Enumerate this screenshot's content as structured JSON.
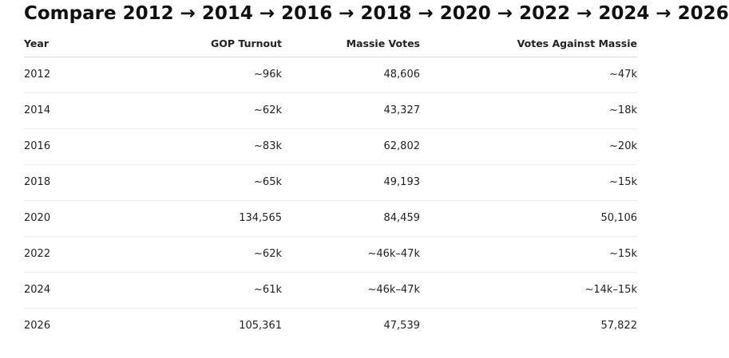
{
  "heading": "Compare 2012 → 2014 → 2016 → 2018 → 2020 → 2022 → 2024 → 2026",
  "table": {
    "headers": [
      "Year",
      "GOP Turnout",
      "Massie Votes",
      "Votes Against Massie"
    ],
    "rows": [
      [
        "2012",
        "~96k",
        "48,606",
        "~47k"
      ],
      [
        "2014",
        "~62k",
        "43,327",
        "~18k"
      ],
      [
        "2016",
        "~83k",
        "62,802",
        "~20k"
      ],
      [
        "2018",
        "~65k",
        "49,193",
        "~15k"
      ],
      [
        "2020",
        "134,565",
        "84,459",
        "50,106"
      ],
      [
        "2022",
        "~62k",
        "~46k–47k",
        "~15k"
      ],
      [
        "2024",
        "~61k",
        "~46k–47k",
        "~14k–15k"
      ],
      [
        "2026",
        "105,361",
        "47,539",
        "57,822"
      ]
    ]
  }
}
